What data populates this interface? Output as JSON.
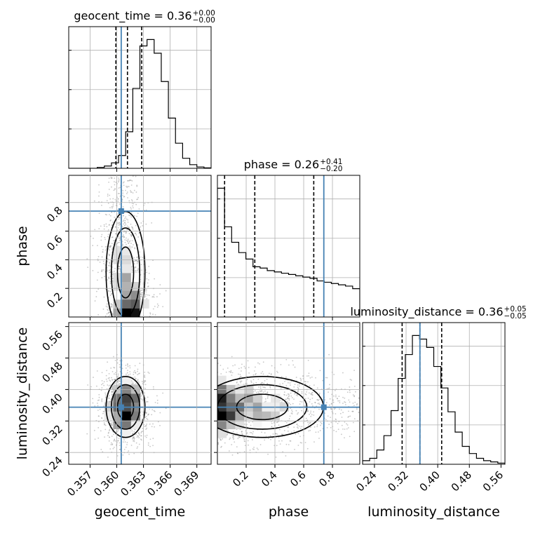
{
  "chart_data": {
    "type": "corner",
    "parameters": [
      "geocent_time",
      "phase",
      "luminosity_distance"
    ],
    "axis_labels": [
      "geocent_time",
      "phase",
      "luminosity_distance"
    ],
    "ranges": [
      [
        0.3546,
        0.3706
      ],
      [
        0.0,
        0.99
      ],
      [
        0.21,
        0.57
      ]
    ],
    "ticks": [
      [
        {
          "v": 0.357,
          "t": "0.357"
        },
        {
          "v": 0.36,
          "t": "0.360"
        },
        {
          "v": 0.363,
          "t": "0.363"
        },
        {
          "v": 0.366,
          "t": "0.366"
        },
        {
          "v": 0.369,
          "t": "0.369"
        }
      ],
      [
        {
          "v": 0.2,
          "t": "0.2"
        },
        {
          "v": 0.4,
          "t": "0.4"
        },
        {
          "v": 0.6,
          "t": "0.6"
        },
        {
          "v": 0.8,
          "t": "0.8"
        }
      ],
      [
        {
          "v": 0.24,
          "t": "0.24"
        },
        {
          "v": 0.32,
          "t": "0.32"
        },
        {
          "v": 0.4,
          "t": "0.40"
        },
        {
          "v": 0.48,
          "t": "0.48"
        },
        {
          "v": 0.56,
          "t": "0.56"
        }
      ]
    ],
    "truths": [
      0.3605,
      0.74,
      0.355
    ],
    "truth_color": "#4682b4",
    "titles": [
      {
        "name": "geocent_time",
        "value": "0.36",
        "plus": "+0.00",
        "minus": "−0.00"
      },
      {
        "name": "phase",
        "value": "0.26",
        "plus": "+0.41",
        "minus": "−0.20"
      },
      {
        "name": "luminosity_distance",
        "value": "0.36",
        "plus": "+0.05",
        "minus": "−0.05"
      }
    ],
    "quantiles": [
      [
        0.3599,
        0.3612,
        0.3628
      ],
      [
        0.05,
        0.26,
        0.67
      ],
      [
        0.31,
        0.355,
        0.41
      ]
    ],
    "hist1d": [
      {
        "edges_start": 0.3546,
        "bin_width": 0.0008,
        "counts": [
          0,
          0,
          0,
          0,
          2,
          5,
          12,
          28,
          80,
          175,
          268,
          282,
          252,
          190,
          110,
          55,
          22,
          8,
          3,
          1
        ]
      },
      {
        "edges_start": 0.0,
        "bin_width": 0.0495,
        "counts": [
          100,
          70,
          58,
          50,
          45,
          39,
          38,
          36,
          35,
          34,
          33,
          32,
          31,
          30,
          28,
          27,
          26,
          25,
          24,
          22
        ]
      },
      {
        "edges_start": 0.21,
        "bin_width": 0.018,
        "counts": [
          3,
          5,
          12,
          24,
          45,
          72,
          92,
          108,
          105,
          98,
          82,
          64,
          44,
          27,
          15,
          9,
          5,
          3,
          2,
          1
        ]
      }
    ],
    "scatter_style": {
      "color": "#9a9a9a",
      "n_points": 1500
    },
    "contour_levels": [
      "0.39",
      "0.86",
      "0.99"
    ]
  }
}
